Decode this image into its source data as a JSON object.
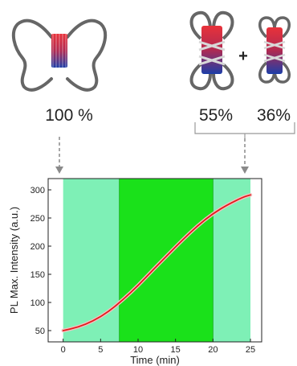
{
  "top_panel": {
    "single_state_percent": "100 %",
    "plus_sign": "+",
    "mixed_state_percent_a": "55%",
    "mixed_state_percent_b": "36%"
  },
  "chart_data": {
    "type": "line",
    "xlabel": "Time (min)",
    "ylabel": "PL Max. Intensity (a.u.)",
    "xlim": [
      -2,
      26.5
    ],
    "ylim": [
      30,
      320
    ],
    "xticks": [
      0,
      5,
      10,
      15,
      20,
      25
    ],
    "yticks": [
      50,
      100,
      150,
      200,
      250,
      300
    ],
    "shaded_regions": [
      {
        "from": 0,
        "to": 7.5,
        "color": "#7ef0b6"
      },
      {
        "from": 7.5,
        "to": 20,
        "color": "#1ae11a"
      },
      {
        "from": 20,
        "to": 25,
        "color": "#7ef0b6"
      }
    ],
    "series": [
      {
        "color": "#e21b1b",
        "x": [
          0,
          2,
          4,
          6,
          8,
          10,
          12,
          14,
          16,
          18,
          20,
          22,
          24,
          25
        ],
        "y": [
          50,
          56,
          67,
          83,
          105,
          130,
          158,
          185,
          212,
          237,
          258,
          274,
          287,
          291
        ]
      }
    ],
    "grid": false,
    "legend": "none"
  },
  "colors": {
    "quadruplex_top": "#e0262e",
    "quadruplex_bottom": "#1d3ea8",
    "dna_strand": "#6b6b6b",
    "arrow": "#8a8a8a"
  }
}
